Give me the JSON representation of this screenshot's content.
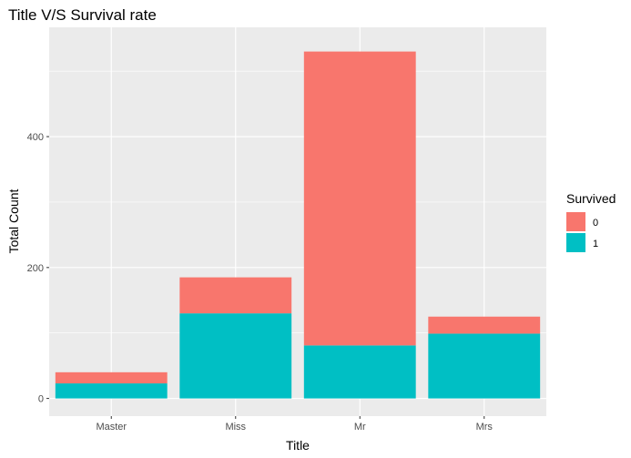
{
  "chart_data": {
    "type": "bar",
    "stacked": true,
    "title": "Title V/S Survival rate",
    "xlabel": "Title",
    "ylabel": "Total Count",
    "categories": [
      "Master",
      "Miss",
      "Mr",
      "Mrs"
    ],
    "series": [
      {
        "name": "0",
        "color": "#F8766D",
        "values": [
          17,
          55,
          449,
          26
        ]
      },
      {
        "name": "1",
        "color": "#00BFC4",
        "values": [
          23,
          130,
          81,
          99
        ]
      }
    ],
    "yticks": [
      0,
      200,
      400
    ],
    "ylim": [
      -27,
      567
    ],
    "legend": {
      "title": "Survived",
      "position": "right"
    },
    "grid": true,
    "panel_background": "#EBEBEB",
    "grid_color": "#FFFFFF"
  }
}
